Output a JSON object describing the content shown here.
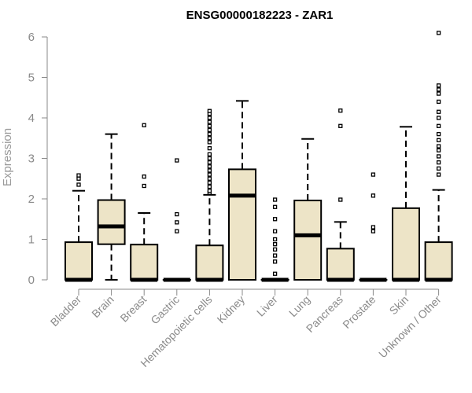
{
  "chart_data": {
    "type": "boxplot",
    "title": "ENSG00000182223 - ZAR1",
    "xlabel": "",
    "ylabel": "Expression",
    "ylim": [
      0,
      6.2
    ],
    "yticks": [
      0,
      1,
      2,
      3,
      4,
      5,
      6
    ],
    "box_color": "#ede4c7",
    "line_color": "#000000",
    "grid": false,
    "categories": [
      "Bladder",
      "Brain",
      "Breast",
      "Gastric",
      "Hematopoietic cells",
      "Kidney",
      "Liver",
      "Lung",
      "Pancreas",
      "Prostate",
      "Skin",
      "Unknown / Other"
    ],
    "boxes": [
      {
        "name": "Bladder",
        "whisker_low": 0,
        "q1": 0,
        "median": 0,
        "q3": 0.93,
        "whisker_high": 2.2,
        "outliers": [
          2.35,
          2.5,
          2.58
        ]
      },
      {
        "name": "Brain",
        "whisker_low": 0,
        "q1": 0.88,
        "median": 1.32,
        "q3": 1.97,
        "whisker_high": 3.6,
        "outliers": []
      },
      {
        "name": "Breast",
        "whisker_low": 0,
        "q1": 0,
        "median": 0,
        "q3": 0.87,
        "whisker_high": 1.65,
        "outliers": [
          2.32,
          2.55,
          3.82
        ]
      },
      {
        "name": "Gastric",
        "whisker_low": 0,
        "q1": 0,
        "median": 0,
        "q3": 0,
        "whisker_high": 0,
        "outliers": [
          1.2,
          1.42,
          1.62,
          2.95
        ]
      },
      {
        "name": "Hematopoietic cells",
        "whisker_low": 0,
        "q1": 0,
        "median": 0,
        "q3": 0.85,
        "whisker_high": 2.1,
        "outliers": [
          2.15,
          2.2,
          2.3,
          2.4,
          2.5,
          2.6,
          2.7,
          2.8,
          2.9,
          3.0,
          3.1,
          3.25,
          3.4,
          3.5,
          3.6,
          3.7,
          3.8,
          3.9,
          4.0,
          4.1,
          4.17
        ]
      },
      {
        "name": "Kidney",
        "whisker_low": 0,
        "q1": 0,
        "median": 2.08,
        "q3": 2.73,
        "whisker_high": 4.42,
        "outliers": []
      },
      {
        "name": "Liver",
        "whisker_low": 0,
        "q1": 0,
        "median": 0,
        "q3": 0,
        "whisker_high": 0,
        "outliers": [
          0.15,
          0.45,
          0.6,
          0.75,
          0.88,
          1.0,
          1.2,
          1.5,
          1.8,
          1.98
        ]
      },
      {
        "name": "Lung",
        "whisker_low": 0,
        "q1": 0,
        "median": 1.1,
        "q3": 1.96,
        "whisker_high": 3.48,
        "outliers": []
      },
      {
        "name": "Pancreas",
        "whisker_low": 0,
        "q1": 0,
        "median": 0,
        "q3": 0.77,
        "whisker_high": 1.43,
        "outliers": [
          1.98,
          3.8,
          4.18
        ]
      },
      {
        "name": "Prostate",
        "whisker_low": 0,
        "q1": 0,
        "median": 0,
        "q3": 0,
        "whisker_high": 0,
        "outliers": [
          1.2,
          1.3,
          2.08,
          2.6
        ]
      },
      {
        "name": "Skin",
        "whisker_low": 0,
        "q1": 0,
        "median": 0,
        "q3": 1.77,
        "whisker_high": 3.78,
        "outliers": []
      },
      {
        "name": "Unknown / Other",
        "whisker_low": 0,
        "q1": 0,
        "median": 0,
        "q3": 0.93,
        "whisker_high": 2.22,
        "outliers": [
          2.6,
          2.75,
          2.9,
          3.05,
          3.2,
          3.3,
          3.45,
          3.6,
          3.8,
          4.0,
          4.15,
          4.4,
          4.6,
          4.7,
          4.8,
          6.1
        ]
      }
    ]
  }
}
